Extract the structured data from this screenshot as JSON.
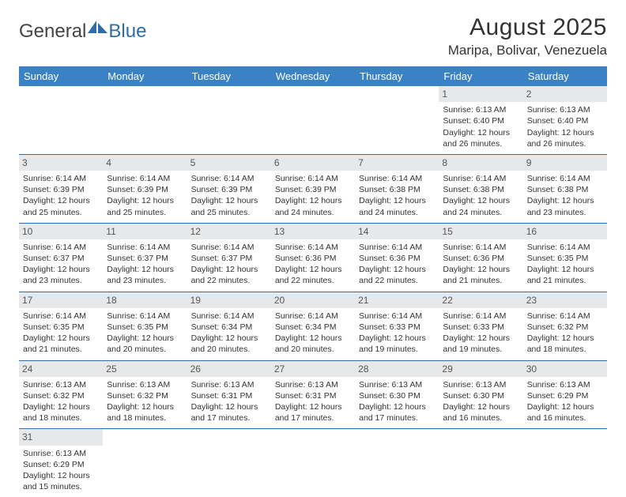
{
  "logo": {
    "part1": "General",
    "part2": "Blue"
  },
  "title": "August 2025",
  "location": "Maripa, Bolivar, Venezuela",
  "colors": {
    "header_bg": "#3b82c4",
    "header_text": "#ffffff",
    "daynum_bg": "#e7e8ea",
    "rule": "#2d6da8",
    "logo_accent": "#2d6da8"
  },
  "weekdays": [
    "Sunday",
    "Monday",
    "Tuesday",
    "Wednesday",
    "Thursday",
    "Friday",
    "Saturday"
  ],
  "weeks": [
    [
      null,
      null,
      null,
      null,
      null,
      {
        "n": "1",
        "sr": "Sunrise: 6:13 AM",
        "ss": "Sunset: 6:40 PM",
        "d1": "Daylight: 12 hours",
        "d2": "and 26 minutes."
      },
      {
        "n": "2",
        "sr": "Sunrise: 6:13 AM",
        "ss": "Sunset: 6:40 PM",
        "d1": "Daylight: 12 hours",
        "d2": "and 26 minutes."
      }
    ],
    [
      {
        "n": "3",
        "sr": "Sunrise: 6:14 AM",
        "ss": "Sunset: 6:39 PM",
        "d1": "Daylight: 12 hours",
        "d2": "and 25 minutes."
      },
      {
        "n": "4",
        "sr": "Sunrise: 6:14 AM",
        "ss": "Sunset: 6:39 PM",
        "d1": "Daylight: 12 hours",
        "d2": "and 25 minutes."
      },
      {
        "n": "5",
        "sr": "Sunrise: 6:14 AM",
        "ss": "Sunset: 6:39 PM",
        "d1": "Daylight: 12 hours",
        "d2": "and 25 minutes."
      },
      {
        "n": "6",
        "sr": "Sunrise: 6:14 AM",
        "ss": "Sunset: 6:39 PM",
        "d1": "Daylight: 12 hours",
        "d2": "and 24 minutes."
      },
      {
        "n": "7",
        "sr": "Sunrise: 6:14 AM",
        "ss": "Sunset: 6:38 PM",
        "d1": "Daylight: 12 hours",
        "d2": "and 24 minutes."
      },
      {
        "n": "8",
        "sr": "Sunrise: 6:14 AM",
        "ss": "Sunset: 6:38 PM",
        "d1": "Daylight: 12 hours",
        "d2": "and 24 minutes."
      },
      {
        "n": "9",
        "sr": "Sunrise: 6:14 AM",
        "ss": "Sunset: 6:38 PM",
        "d1": "Daylight: 12 hours",
        "d2": "and 23 minutes."
      }
    ],
    [
      {
        "n": "10",
        "sr": "Sunrise: 6:14 AM",
        "ss": "Sunset: 6:37 PM",
        "d1": "Daylight: 12 hours",
        "d2": "and 23 minutes."
      },
      {
        "n": "11",
        "sr": "Sunrise: 6:14 AM",
        "ss": "Sunset: 6:37 PM",
        "d1": "Daylight: 12 hours",
        "d2": "and 23 minutes."
      },
      {
        "n": "12",
        "sr": "Sunrise: 6:14 AM",
        "ss": "Sunset: 6:37 PM",
        "d1": "Daylight: 12 hours",
        "d2": "and 22 minutes."
      },
      {
        "n": "13",
        "sr": "Sunrise: 6:14 AM",
        "ss": "Sunset: 6:36 PM",
        "d1": "Daylight: 12 hours",
        "d2": "and 22 minutes."
      },
      {
        "n": "14",
        "sr": "Sunrise: 6:14 AM",
        "ss": "Sunset: 6:36 PM",
        "d1": "Daylight: 12 hours",
        "d2": "and 22 minutes."
      },
      {
        "n": "15",
        "sr": "Sunrise: 6:14 AM",
        "ss": "Sunset: 6:36 PM",
        "d1": "Daylight: 12 hours",
        "d2": "and 21 minutes."
      },
      {
        "n": "16",
        "sr": "Sunrise: 6:14 AM",
        "ss": "Sunset: 6:35 PM",
        "d1": "Daylight: 12 hours",
        "d2": "and 21 minutes."
      }
    ],
    [
      {
        "n": "17",
        "sr": "Sunrise: 6:14 AM",
        "ss": "Sunset: 6:35 PM",
        "d1": "Daylight: 12 hours",
        "d2": "and 21 minutes."
      },
      {
        "n": "18",
        "sr": "Sunrise: 6:14 AM",
        "ss": "Sunset: 6:35 PM",
        "d1": "Daylight: 12 hours",
        "d2": "and 20 minutes."
      },
      {
        "n": "19",
        "sr": "Sunrise: 6:14 AM",
        "ss": "Sunset: 6:34 PM",
        "d1": "Daylight: 12 hours",
        "d2": "and 20 minutes."
      },
      {
        "n": "20",
        "sr": "Sunrise: 6:14 AM",
        "ss": "Sunset: 6:34 PM",
        "d1": "Daylight: 12 hours",
        "d2": "and 20 minutes."
      },
      {
        "n": "21",
        "sr": "Sunrise: 6:14 AM",
        "ss": "Sunset: 6:33 PM",
        "d1": "Daylight: 12 hours",
        "d2": "and 19 minutes."
      },
      {
        "n": "22",
        "sr": "Sunrise: 6:14 AM",
        "ss": "Sunset: 6:33 PM",
        "d1": "Daylight: 12 hours",
        "d2": "and 19 minutes."
      },
      {
        "n": "23",
        "sr": "Sunrise: 6:14 AM",
        "ss": "Sunset: 6:32 PM",
        "d1": "Daylight: 12 hours",
        "d2": "and 18 minutes."
      }
    ],
    [
      {
        "n": "24",
        "sr": "Sunrise: 6:13 AM",
        "ss": "Sunset: 6:32 PM",
        "d1": "Daylight: 12 hours",
        "d2": "and 18 minutes."
      },
      {
        "n": "25",
        "sr": "Sunrise: 6:13 AM",
        "ss": "Sunset: 6:32 PM",
        "d1": "Daylight: 12 hours",
        "d2": "and 18 minutes."
      },
      {
        "n": "26",
        "sr": "Sunrise: 6:13 AM",
        "ss": "Sunset: 6:31 PM",
        "d1": "Daylight: 12 hours",
        "d2": "and 17 minutes."
      },
      {
        "n": "27",
        "sr": "Sunrise: 6:13 AM",
        "ss": "Sunset: 6:31 PM",
        "d1": "Daylight: 12 hours",
        "d2": "and 17 minutes."
      },
      {
        "n": "28",
        "sr": "Sunrise: 6:13 AM",
        "ss": "Sunset: 6:30 PM",
        "d1": "Daylight: 12 hours",
        "d2": "and 17 minutes."
      },
      {
        "n": "29",
        "sr": "Sunrise: 6:13 AM",
        "ss": "Sunset: 6:30 PM",
        "d1": "Daylight: 12 hours",
        "d2": "and 16 minutes."
      },
      {
        "n": "30",
        "sr": "Sunrise: 6:13 AM",
        "ss": "Sunset: 6:29 PM",
        "d1": "Daylight: 12 hours",
        "d2": "and 16 minutes."
      }
    ],
    [
      {
        "n": "31",
        "sr": "Sunrise: 6:13 AM",
        "ss": "Sunset: 6:29 PM",
        "d1": "Daylight: 12 hours",
        "d2": "and 15 minutes."
      },
      null,
      null,
      null,
      null,
      null,
      null
    ]
  ]
}
